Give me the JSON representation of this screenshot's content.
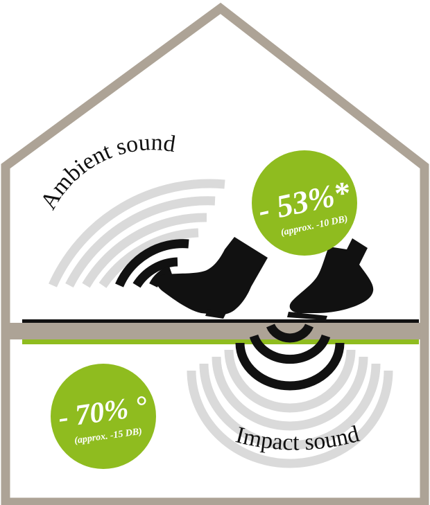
{
  "colors": {
    "house_frame": "#ada396",
    "accent_green": "#8fbc1f",
    "floor_line": "#111111",
    "wave_light": "#dadada",
    "wave_dark": "#111111",
    "badge_text": "#ffffff",
    "label_text": "#111111"
  },
  "labels": {
    "ambient_sound": "Ambient sound",
    "impact_sound": "Impact sound"
  },
  "badges": {
    "ambient": {
      "value": "- 53%*",
      "sub": "(approx. -10 DB)"
    },
    "impact": {
      "value": "- 70% °",
      "sub": "(approx. -15 DB)"
    }
  },
  "icons": {
    "left_shoe": "boot-icon",
    "right_shoe": "boot-icon"
  }
}
